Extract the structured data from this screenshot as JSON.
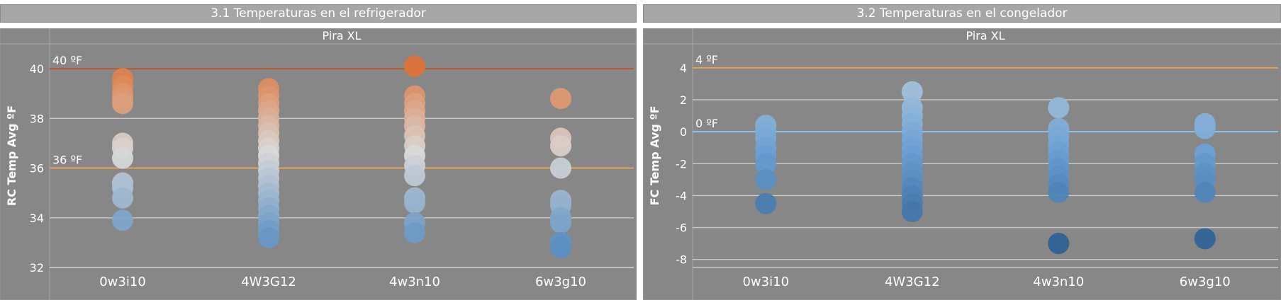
{
  "chart_data": [
    {
      "type": "scatter",
      "title": "3.1 Temperaturas en el refrigerador",
      "subtitle": "Pira XL",
      "xlabel": "",
      "ylabel": "RC Temp Avg ºF",
      "categories": [
        "0w3i10",
        "4W3G12",
        "4w3n10",
        "6w3g10"
      ],
      "ylim": [
        32,
        41
      ],
      "yticks": [
        32,
        34,
        36,
        38,
        40
      ],
      "grid": true,
      "reference_lines": [
        {
          "value": 40,
          "label": "40 ºF",
          "color": "#b85a30"
        },
        {
          "value": 36,
          "label": "36 ºF",
          "color": "#e8a050"
        }
      ],
      "series": [
        {
          "category": "0w3i10",
          "values": [
            39.6,
            39.3,
            39.0,
            38.8,
            38.6,
            37.0,
            36.8,
            36.4,
            35.4,
            35.2,
            34.8,
            33.9
          ]
        },
        {
          "category": "4W3G12",
          "values": [
            39.2,
            38.9,
            38.6,
            38.3,
            38.0,
            37.7,
            37.4,
            37.1,
            36.8,
            36.5,
            36.2,
            35.9,
            35.6,
            35.3,
            35.0,
            34.7,
            34.4,
            34.1,
            33.8,
            33.5,
            33.2
          ]
        },
        {
          "category": "4w3n10",
          "values": [
            40.1,
            38.9,
            38.6,
            38.3,
            38.0,
            37.7,
            37.3,
            36.9,
            36.5,
            36.1,
            35.7,
            34.8,
            34.6,
            33.8,
            33.4
          ]
        },
        {
          "category": "6w3g10",
          "values": [
            38.8,
            37.2,
            36.9,
            36.0,
            34.7,
            34.5,
            34.0,
            33.8,
            33.0,
            32.8
          ]
        }
      ],
      "color_scale": {
        "low": "#3f7fbf",
        "mid": "#d9d9d9",
        "high": "#e05a10"
      }
    },
    {
      "type": "scatter",
      "title": "3.2 Temperaturas en el congelador",
      "subtitle": "Pira XL",
      "xlabel": "",
      "ylabel": "FC Temp Avg ºF",
      "categories": [
        "0w3i10",
        "4W3G12",
        "4w3n10",
        "6w3g10"
      ],
      "ylim": [
        -8.5,
        5.5
      ],
      "yticks": [
        -8,
        -6,
        -4,
        -2,
        0,
        2,
        4
      ],
      "grid": true,
      "reference_lines": [
        {
          "value": 4,
          "label": "4 ºF",
          "color": "#e8a050"
        },
        {
          "value": 0,
          "label": "0 ºF",
          "color": "#8ec3e6"
        }
      ],
      "series": [
        {
          "category": "0w3i10",
          "values": [
            0.4,
            0.0,
            -0.4,
            -1.0,
            -1.5,
            -2.0,
            -3.0,
            -4.5
          ]
        },
        {
          "category": "4W3G12",
          "values": [
            2.5,
            1.5,
            1.0,
            0.5,
            0.0,
            -0.5,
            -1.0,
            -1.5,
            -2.0,
            -2.5,
            -3.0,
            -3.5,
            -4.0,
            -4.5,
            -5.0
          ]
        },
        {
          "category": "4w3n10",
          "values": [
            1.5,
            0.2,
            -0.3,
            -0.8,
            -1.3,
            -1.8,
            -2.3,
            -2.8,
            -3.3,
            -3.8,
            -7.0
          ]
        },
        {
          "category": "6w3g10",
          "values": [
            0.5,
            0.2,
            -1.4,
            -2.0,
            -2.6,
            -3.0,
            -3.8,
            -6.7
          ]
        }
      ],
      "color_scale": {
        "low": "#1f4f82",
        "mid": "#6a9fd4",
        "high": "#c9d9e3"
      }
    }
  ]
}
